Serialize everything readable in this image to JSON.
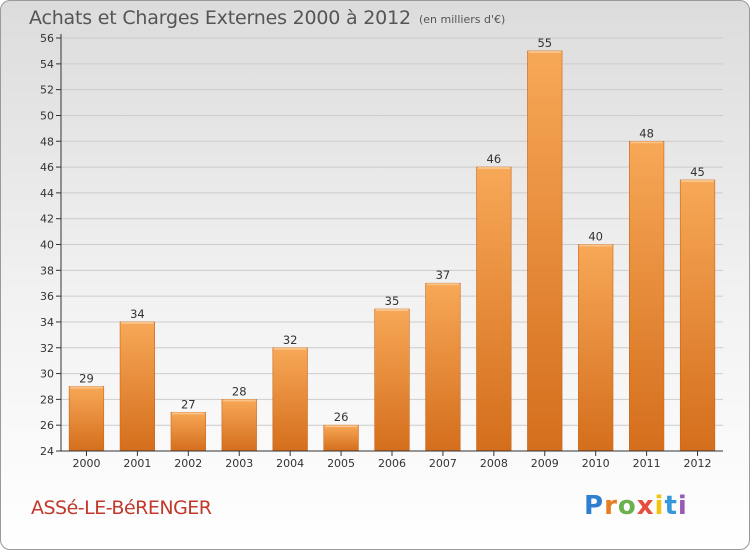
{
  "header": {
    "title": "Achats et Charges Externes 2000 à 2012",
    "unit": "(en milliers d'€)"
  },
  "footer": {
    "commune": "ASSé-LE-BéRENGER",
    "logo": {
      "p": "P",
      "r": "r",
      "o": "o",
      "x": "x",
      "i1": "i",
      "t": "t",
      "i2": "i"
    }
  },
  "colors": {
    "bar": "#f0913a",
    "bar_light": "#f5ad5e",
    "bar_dark": "#d0691a",
    "axis": "#333333",
    "grid": "#cccccc"
  },
  "chart_data": {
    "type": "bar",
    "title": "Achats et Charges Externes 2000 à 2012",
    "subtitle": "(en milliers d'€)",
    "categories": [
      "2000",
      "2001",
      "2002",
      "2003",
      "2004",
      "2005",
      "2006",
      "2007",
      "2008",
      "2009",
      "2010",
      "2011",
      "2012"
    ],
    "values": [
      29,
      34,
      27,
      28,
      32,
      26,
      35,
      37,
      46,
      55,
      40,
      48,
      45
    ],
    "ylim": [
      24,
      56
    ],
    "yticks": [
      24,
      26,
      28,
      30,
      32,
      34,
      36,
      38,
      40,
      42,
      44,
      46,
      48,
      50,
      52,
      54,
      56
    ],
    "grid": true,
    "legend": "none"
  }
}
